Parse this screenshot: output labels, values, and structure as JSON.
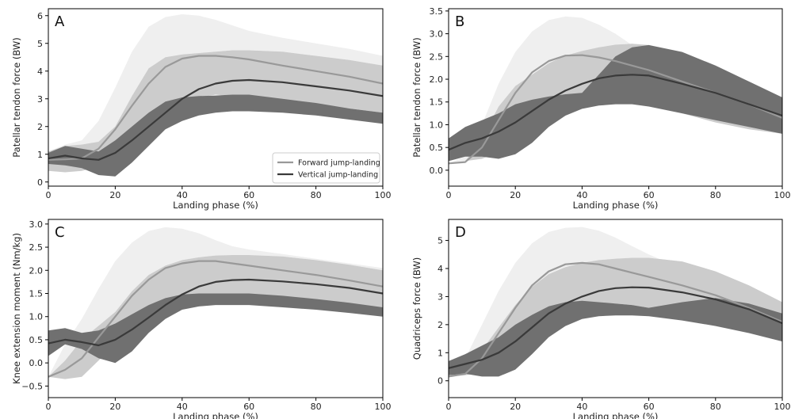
{
  "colors": {
    "forward_line": "#999999",
    "forward_band": "#cccccc",
    "forward_band_pre": "#efefef",
    "vertical_line": "#3a3a3a",
    "vertical_band": "#707070",
    "axis": "#000000"
  },
  "chart_data": [
    {
      "type": "line",
      "panel": "A",
      "xlabel": "Landing phase (%)",
      "ylabel": "Patellar tendon force (BW)",
      "xlim": [
        0,
        100
      ],
      "ylim": [
        -0.15,
        6.25
      ],
      "xticks": [
        0,
        20,
        40,
        60,
        80,
        100
      ],
      "yticks": [
        0,
        1,
        2,
        3,
        4,
        5,
        6
      ],
      "ytick_labels": [
        "0",
        "1",
        "2",
        "3",
        "4",
        "5",
        "6"
      ],
      "legend": {
        "placement": "lower-right",
        "entries": [
          "Forward jump-landing",
          "Vertical jump-landing"
        ]
      },
      "series": [
        {
          "name": "Forward jump-landing",
          "x": [
            0,
            5,
            10,
            15,
            20,
            25,
            30,
            35,
            40,
            45,
            50,
            55,
            60,
            70,
            80,
            90,
            100
          ],
          "mean": [
            0.8,
            0.82,
            0.85,
            1.2,
            1.9,
            2.75,
            3.55,
            4.15,
            4.45,
            4.55,
            4.55,
            4.5,
            4.42,
            4.2,
            4.0,
            3.8,
            3.55
          ],
          "lower": [
            0.4,
            0.35,
            0.4,
            0.55,
            0.9,
            1.3,
            1.8,
            2.35,
            2.8,
            3.05,
            3.15,
            3.1,
            3.05,
            2.85,
            2.75,
            2.65,
            2.5
          ],
          "upper": [
            1.1,
            1.3,
            1.35,
            1.45,
            2.0,
            3.1,
            4.1,
            4.5,
            4.6,
            4.65,
            4.7,
            4.75,
            4.75,
            4.7,
            4.55,
            4.4,
            4.2
          ],
          "upper_outer": [
            1.1,
            1.35,
            1.5,
            2.2,
            3.4,
            4.7,
            5.6,
            5.95,
            6.05,
            6.0,
            5.85,
            5.65,
            5.45,
            5.2,
            5.0,
            4.8,
            4.55
          ]
        },
        {
          "name": "Vertical jump-landing",
          "x": [
            0,
            5,
            10,
            15,
            20,
            25,
            30,
            35,
            40,
            45,
            50,
            55,
            60,
            70,
            80,
            90,
            100
          ],
          "mean": [
            0.85,
            0.95,
            0.85,
            0.8,
            1.05,
            1.5,
            2.0,
            2.5,
            3.0,
            3.35,
            3.55,
            3.65,
            3.68,
            3.6,
            3.45,
            3.3,
            3.1
          ],
          "lower": [
            0.65,
            0.6,
            0.5,
            0.25,
            0.2,
            0.7,
            1.3,
            1.9,
            2.2,
            2.4,
            2.5,
            2.55,
            2.55,
            2.5,
            2.4,
            2.25,
            2.1
          ],
          "upper": [
            1.05,
            1.3,
            1.2,
            1.1,
            1.5,
            2.0,
            2.5,
            2.9,
            3.05,
            3.1,
            3.12,
            3.15,
            3.15,
            3.0,
            2.85,
            2.65,
            2.5
          ]
        }
      ]
    },
    {
      "type": "line",
      "panel": "B",
      "xlabel": "Landing phase (%)",
      "ylabel": "Patellar tendon force (BW)",
      "xlim": [
        0,
        100
      ],
      "ylim": [
        -0.35,
        3.55
      ],
      "xticks": [
        0,
        20,
        40,
        60,
        80,
        100
      ],
      "yticks": [
        0.0,
        0.5,
        1.0,
        1.5,
        2.0,
        2.5,
        3.0,
        3.5
      ],
      "ytick_labels": [
        "0.0",
        "0.5",
        "1.0",
        "1.5",
        "2.0",
        "2.5",
        "3.0",
        "3.5"
      ],
      "series": [
        {
          "name": "Forward jump-landing",
          "x": [
            0,
            5,
            10,
            15,
            20,
            25,
            30,
            35,
            40,
            45,
            50,
            55,
            60,
            70,
            80,
            90,
            100
          ],
          "mean": [
            0.15,
            0.18,
            0.5,
            1.1,
            1.7,
            2.15,
            2.4,
            2.52,
            2.53,
            2.48,
            2.4,
            2.3,
            2.2,
            1.95,
            1.7,
            1.45,
            1.15
          ],
          "lower": [
            0.15,
            0.2,
            0.25,
            0.4,
            0.7,
            1.05,
            1.3,
            1.5,
            1.65,
            1.7,
            1.65,
            1.55,
            1.45,
            1.25,
            1.05,
            0.9,
            0.8
          ],
          "upper": [
            0.15,
            0.2,
            0.7,
            1.4,
            1.85,
            2.1,
            2.35,
            2.52,
            2.62,
            2.7,
            2.76,
            2.78,
            2.75,
            2.55,
            2.25,
            1.95,
            1.6
          ],
          "upper_outer": [
            0.15,
            0.3,
            1.0,
            1.9,
            2.6,
            3.05,
            3.3,
            3.38,
            3.35,
            3.2,
            3.0,
            2.75,
            2.55,
            2.2,
            1.85,
            1.55,
            1.25
          ]
        },
        {
          "name": "Vertical jump-landing",
          "x": [
            0,
            5,
            10,
            15,
            20,
            25,
            30,
            35,
            40,
            45,
            50,
            55,
            60,
            70,
            80,
            90,
            100
          ],
          "mean": [
            0.45,
            0.6,
            0.7,
            0.85,
            1.05,
            1.3,
            1.55,
            1.75,
            1.9,
            2.02,
            2.08,
            2.1,
            2.08,
            1.9,
            1.7,
            1.45,
            1.2
          ],
          "lower": [
            0.2,
            0.3,
            0.3,
            0.25,
            0.35,
            0.6,
            0.95,
            1.2,
            1.35,
            1.42,
            1.45,
            1.45,
            1.4,
            1.25,
            1.1,
            0.95,
            0.8
          ],
          "upper": [
            0.7,
            0.95,
            1.1,
            1.25,
            1.45,
            1.55,
            1.62,
            1.67,
            1.7,
            2.1,
            2.5,
            2.7,
            2.75,
            2.6,
            2.3,
            1.95,
            1.6
          ]
        }
      ]
    },
    {
      "type": "line",
      "panel": "C",
      "xlabel": "Landing phase (%)",
      "ylabel": "Knee extension moment (Nm/kg)",
      "xlim": [
        0,
        100
      ],
      "ylim": [
        -0.75,
        3.1
      ],
      "xticks": [
        0,
        20,
        40,
        60,
        80,
        100
      ],
      "yticks": [
        -0.5,
        0.0,
        0.5,
        1.0,
        1.5,
        2.0,
        2.5,
        3.0
      ],
      "ytick_labels": [
        "−0.5",
        "0.0",
        "0.5",
        "1.0",
        "1.5",
        "2.0",
        "2.5",
        "3.0"
      ],
      "series": [
        {
          "name": "Forward jump-landing",
          "x": [
            0,
            5,
            10,
            15,
            20,
            25,
            30,
            35,
            40,
            45,
            50,
            55,
            60,
            70,
            80,
            90,
            100
          ],
          "mean": [
            -0.3,
            -0.15,
            0.1,
            0.55,
            1.0,
            1.45,
            1.8,
            2.05,
            2.15,
            2.2,
            2.2,
            2.15,
            2.1,
            2.0,
            1.9,
            1.78,
            1.65
          ],
          "lower": [
            -0.3,
            -0.35,
            -0.3,
            0.05,
            0.4,
            0.75,
            1.05,
            1.25,
            1.35,
            1.4,
            1.4,
            1.38,
            1.35,
            1.28,
            1.2,
            1.12,
            1.05
          ],
          "upper": [
            -0.3,
            0.05,
            0.5,
            0.8,
            1.1,
            1.55,
            1.9,
            2.1,
            2.22,
            2.28,
            2.32,
            2.33,
            2.33,
            2.3,
            2.22,
            2.12,
            2.0
          ],
          "upper_outer": [
            -0.3,
            0.4,
            0.95,
            1.6,
            2.2,
            2.6,
            2.85,
            2.93,
            2.9,
            2.8,
            2.65,
            2.52,
            2.45,
            2.35,
            2.25,
            2.15,
            2.05
          ]
        },
        {
          "name": "Vertical jump-landing",
          "x": [
            0,
            5,
            10,
            15,
            20,
            25,
            30,
            35,
            40,
            45,
            50,
            55,
            60,
            70,
            80,
            90,
            100
          ],
          "mean": [
            0.42,
            0.5,
            0.45,
            0.38,
            0.5,
            0.72,
            0.98,
            1.25,
            1.48,
            1.65,
            1.75,
            1.79,
            1.8,
            1.76,
            1.7,
            1.62,
            1.5
          ],
          "lower": [
            0.15,
            0.4,
            0.3,
            0.1,
            0.0,
            0.25,
            0.65,
            0.95,
            1.15,
            1.22,
            1.25,
            1.25,
            1.25,
            1.2,
            1.15,
            1.08,
            1.0
          ],
          "upper": [
            0.7,
            0.75,
            0.65,
            0.7,
            0.85,
            1.05,
            1.25,
            1.4,
            1.48,
            1.5,
            1.5,
            1.5,
            1.5,
            1.45,
            1.38,
            1.3,
            1.2
          ]
        }
      ]
    },
    {
      "type": "line",
      "panel": "D",
      "xlabel": "Landing phase (%)",
      "ylabel": "Quadriceps force (BW)",
      "xlim": [
        0,
        100
      ],
      "ylim": [
        -0.6,
        5.75
      ],
      "xticks": [
        0,
        20,
        40,
        60,
        80,
        100
      ],
      "yticks": [
        0,
        1,
        2,
        3,
        4,
        5
      ],
      "ytick_labels": [
        "0",
        "1",
        "2",
        "3",
        "4",
        "5"
      ],
      "series": [
        {
          "name": "Forward jump-landing",
          "x": [
            0,
            5,
            10,
            15,
            20,
            25,
            30,
            35,
            40,
            45,
            50,
            55,
            60,
            70,
            80,
            90,
            100
          ],
          "mean": [
            0.15,
            0.25,
            0.8,
            1.7,
            2.6,
            3.4,
            3.9,
            4.15,
            4.2,
            4.15,
            4.0,
            3.85,
            3.7,
            3.4,
            3.05,
            2.6,
            2.1
          ],
          "lower": [
            0.15,
            0.2,
            0.3,
            0.65,
            1.05,
            1.55,
            2.0,
            2.4,
            2.65,
            2.75,
            2.75,
            2.7,
            2.6,
            2.35,
            2.1,
            1.8,
            1.4
          ],
          "upper": [
            0.15,
            0.4,
            1.1,
            1.9,
            2.7,
            3.35,
            3.8,
            4.05,
            4.2,
            4.3,
            4.35,
            4.38,
            4.38,
            4.25,
            3.9,
            3.4,
            2.8
          ],
          "upper_outer": [
            0.15,
            0.8,
            2.0,
            3.2,
            4.2,
            4.9,
            5.3,
            5.45,
            5.48,
            5.35,
            5.1,
            4.8,
            4.5,
            4.0,
            3.55,
            3.1,
            2.6
          ]
        },
        {
          "name": "Vertical jump-landing",
          "x": [
            0,
            5,
            10,
            15,
            20,
            25,
            30,
            35,
            40,
            45,
            50,
            55,
            60,
            70,
            80,
            90,
            100
          ],
          "mean": [
            0.45,
            0.6,
            0.75,
            1.0,
            1.4,
            1.9,
            2.4,
            2.75,
            3.0,
            3.2,
            3.3,
            3.33,
            3.32,
            3.15,
            2.9,
            2.55,
            2.05
          ],
          "lower": [
            0.2,
            0.25,
            0.15,
            0.15,
            0.4,
            0.95,
            1.55,
            1.95,
            2.2,
            2.3,
            2.33,
            2.33,
            2.3,
            2.15,
            1.95,
            1.7,
            1.4
          ],
          "upper": [
            0.7,
            0.95,
            1.25,
            1.55,
            2.0,
            2.35,
            2.65,
            2.8,
            2.85,
            2.8,
            2.75,
            2.7,
            2.6,
            2.8,
            2.95,
            2.75,
            2.4
          ]
        }
      ]
    }
  ]
}
